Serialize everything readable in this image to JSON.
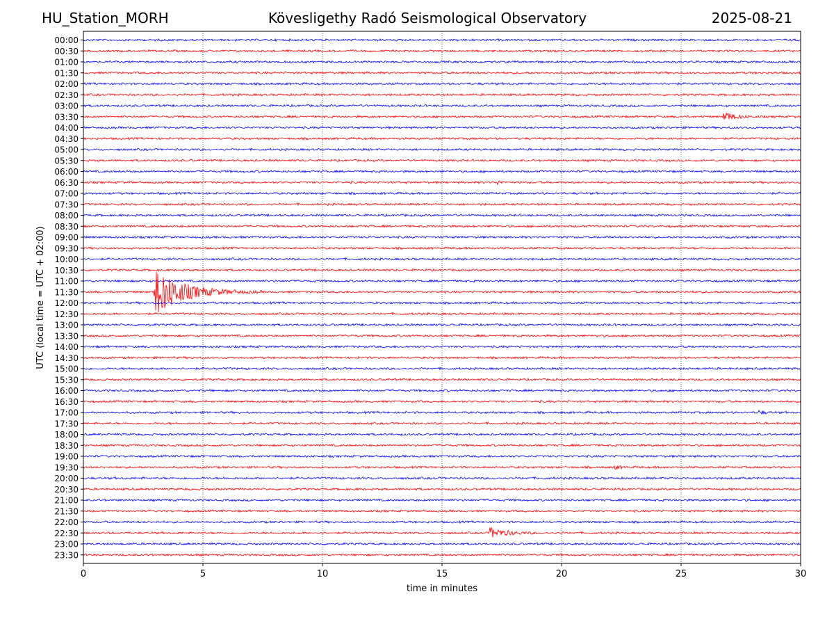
{
  "header": {
    "station": "HU_Station_MORH",
    "observatory": "Kövesligethy Radó Seismological Observatory",
    "date": "2025-08-21"
  },
  "colors": {
    "even_trace": "#0000ff",
    "odd_trace": "#ff0000"
  },
  "chart_data": {
    "type": "line",
    "xlabel": "time in minutes",
    "ylabel": "UTC (local time = UTC + 02:00)",
    "xlim": [
      0,
      30
    ],
    "xticks": [
      0,
      5,
      10,
      15,
      20,
      25,
      30
    ],
    "grid": "vertical dotted at each x tick",
    "trace_rows": [
      "00:00",
      "00:30",
      "01:00",
      "01:30",
      "02:00",
      "02:30",
      "03:00",
      "03:30",
      "04:00",
      "04:30",
      "05:00",
      "05:30",
      "06:00",
      "06:30",
      "07:00",
      "07:30",
      "08:00",
      "08:30",
      "09:00",
      "09:30",
      "10:00",
      "10:30",
      "11:00",
      "11:30",
      "12:00",
      "12:30",
      "13:00",
      "13:30",
      "14:00",
      "14:30",
      "15:00",
      "15:30",
      "16:00",
      "16:30",
      "17:00",
      "17:30",
      "18:00",
      "18:30",
      "19:00",
      "19:30",
      "20:00",
      "20:30",
      "21:00",
      "21:30",
      "22:00",
      "22:30",
      "23:00",
      "23:30"
    ],
    "trace_colors": "alternating blue / red starting with blue",
    "events": [
      {
        "row": "11:30",
        "start_min": 2.95,
        "duration_min": 4.5,
        "amplitude": "large"
      },
      {
        "row": "03:30",
        "start_min": 26.75,
        "duration_min": 1.8,
        "amplitude": "medium"
      },
      {
        "row": "22:30",
        "start_min": 16.95,
        "duration_min": 2.6,
        "amplitude": "medium"
      },
      {
        "row": "17:00",
        "start_min": 28.2,
        "duration_min": 0.9,
        "amplitude": "small"
      },
      {
        "row": "19:30",
        "start_min": 22.2,
        "duration_min": 0.9,
        "amplitude": "small"
      },
      {
        "row": "06:30",
        "start_min": 17.3,
        "duration_min": 0.6,
        "amplitude": "small"
      }
    ]
  }
}
